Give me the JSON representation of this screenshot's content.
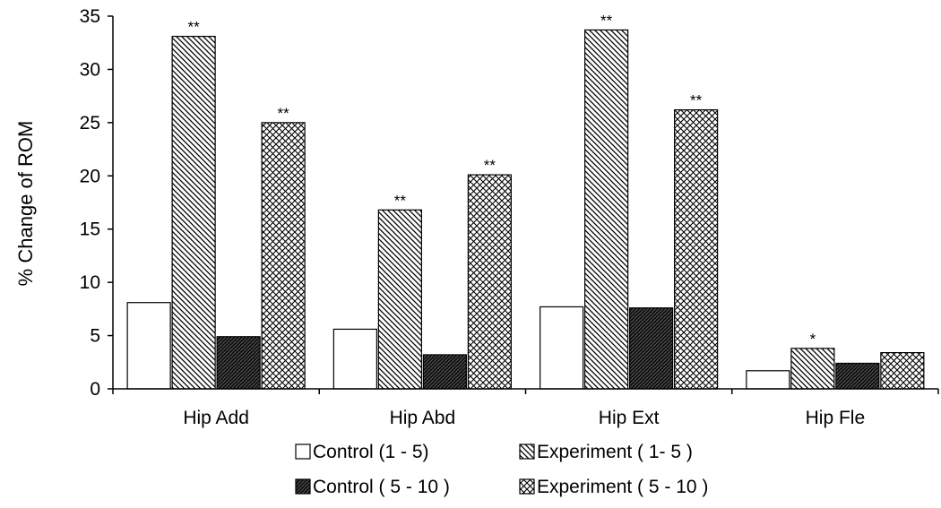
{
  "chart_data": {
    "type": "bar",
    "categories": [
      "Hip Add",
      "Hip Abd",
      "Hip Ext",
      "Hip Fle"
    ],
    "series": [
      {
        "name": "Control (1 - 5)",
        "pattern": "blank",
        "values": [
          8.1,
          5.6,
          7.7,
          1.7
        ],
        "significance": [
          "",
          "",
          "",
          ""
        ]
      },
      {
        "name": "Experiment ( 1- 5 )",
        "pattern": "diagonal",
        "values": [
          33.1,
          16.8,
          33.7,
          3.8
        ],
        "significance": [
          "**",
          "**",
          "**",
          "*"
        ]
      },
      {
        "name": "Control ( 5 - 10 )",
        "pattern": "dark",
        "values": [
          4.9,
          3.2,
          7.6,
          2.4
        ],
        "significance": [
          "",
          "",
          "",
          ""
        ]
      },
      {
        "name": "Experiment ( 5 - 10 )",
        "pattern": "crosshatch",
        "values": [
          25.0,
          20.1,
          26.2,
          3.4
        ],
        "significance": [
          "**",
          "**",
          "**",
          ""
        ]
      }
    ],
    "ylabel": "% Change of ROM",
    "xlabel": "",
    "ylim": [
      0,
      35
    ],
    "yticks": [
      0,
      5,
      10,
      15,
      20,
      25,
      30,
      35
    ],
    "grid": false,
    "legend_position": "bottom"
  }
}
